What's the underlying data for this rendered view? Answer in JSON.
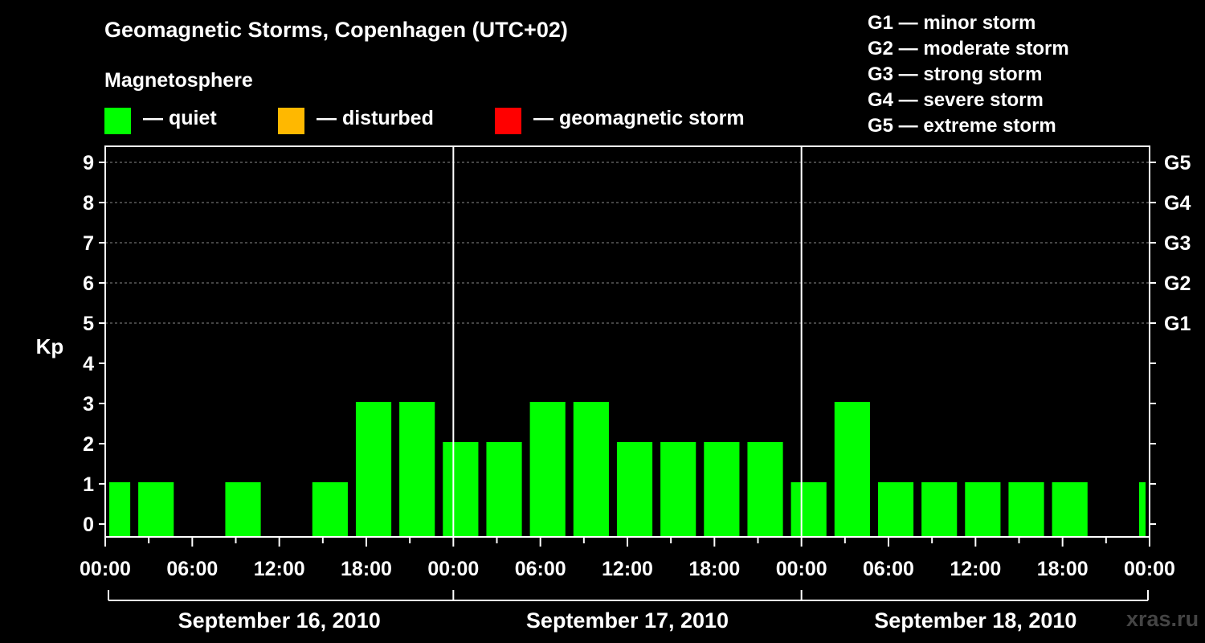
{
  "header": {
    "title": "Geomagnetic Storms, Copenhagen (UTC+02)",
    "subtitle": "Magnetosphere"
  },
  "legend": {
    "items": [
      {
        "label": "— quiet",
        "color": "#00ff00"
      },
      {
        "label": "— disturbed",
        "color": "#ffb800"
      },
      {
        "label": "— geomagnetic storm",
        "color": "#ff0000"
      }
    ]
  },
  "storm_scale": [
    "G1 — minor storm",
    "G2 — moderate storm",
    "G3 — strong storm",
    "G4 — severe storm",
    "G5 — extreme storm"
  ],
  "watermark": "xras.ru",
  "chart_data": {
    "type": "bar",
    "title": "Geomagnetic Storms, Copenhagen (UTC+02)",
    "ylabel": "Kp",
    "xlabel": "",
    "ylim": [
      0,
      9
    ],
    "y_ticks": [
      "0",
      "1",
      "2",
      "3",
      "4",
      "5",
      "6",
      "7",
      "8",
      "9"
    ],
    "right_axis_ticks": [
      {
        "kp": 5,
        "label": "G1"
      },
      {
        "kp": 6,
        "label": "G2"
      },
      {
        "kp": 7,
        "label": "G3"
      },
      {
        "kp": 8,
        "label": "G4"
      },
      {
        "kp": 9,
        "label": "G5"
      }
    ],
    "x_tick_labels": [
      "00:00",
      "06:00",
      "12:00",
      "18:00",
      "00:00",
      "06:00",
      "12:00",
      "18:00",
      "00:00",
      "06:00",
      "12:00",
      "18:00",
      "00:00"
    ],
    "x_range_hours": [
      0,
      72
    ],
    "day_labels": [
      "September 16, 2010",
      "September 17, 2010",
      "September 18, 2010"
    ],
    "bar_color": "#00ff00",
    "bars": [
      {
        "start_hour": 0,
        "end_hour": 2,
        "kp": 1
      },
      {
        "start_hour": 2,
        "end_hour": 5,
        "kp": 1
      },
      {
        "start_hour": 5,
        "end_hour": 8,
        "kp": 0
      },
      {
        "start_hour": 8,
        "end_hour": 11,
        "kp": 1
      },
      {
        "start_hour": 11,
        "end_hour": 14,
        "kp": 0
      },
      {
        "start_hour": 14,
        "end_hour": 17,
        "kp": 1
      },
      {
        "start_hour": 17,
        "end_hour": 20,
        "kp": 3
      },
      {
        "start_hour": 20,
        "end_hour": 23,
        "kp": 3
      },
      {
        "start_hour": 23,
        "end_hour": 26,
        "kp": 2
      },
      {
        "start_hour": 26,
        "end_hour": 29,
        "kp": 2
      },
      {
        "start_hour": 29,
        "end_hour": 32,
        "kp": 3
      },
      {
        "start_hour": 32,
        "end_hour": 35,
        "kp": 3
      },
      {
        "start_hour": 35,
        "end_hour": 38,
        "kp": 2
      },
      {
        "start_hour": 38,
        "end_hour": 41,
        "kp": 2
      },
      {
        "start_hour": 41,
        "end_hour": 44,
        "kp": 2
      },
      {
        "start_hour": 44,
        "end_hour": 47,
        "kp": 2
      },
      {
        "start_hour": 47,
        "end_hour": 50,
        "kp": 1
      },
      {
        "start_hour": 50,
        "end_hour": 53,
        "kp": 3
      },
      {
        "start_hour": 53,
        "end_hour": 56,
        "kp": 1
      },
      {
        "start_hour": 56,
        "end_hour": 59,
        "kp": 1
      },
      {
        "start_hour": 59,
        "end_hour": 62,
        "kp": 1
      },
      {
        "start_hour": 62,
        "end_hour": 65,
        "kp": 1
      },
      {
        "start_hour": 65,
        "end_hour": 68,
        "kp": 1
      },
      {
        "start_hour": 68,
        "end_hour": 71,
        "kp": 0
      },
      {
        "start_hour": 71,
        "end_hour": 72,
        "kp": 1
      }
    ]
  }
}
